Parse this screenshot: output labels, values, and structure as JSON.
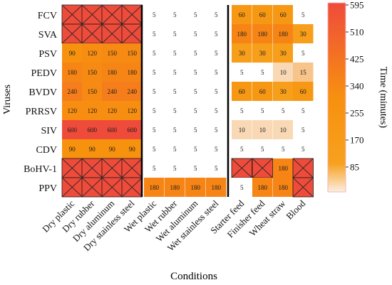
{
  "chart_data": {
    "type": "heatmap",
    "xlabel": "Conditions",
    "ylabel": "Viruses",
    "colorbar_label": "Time (minutes)",
    "columns": [
      "Dry plastic",
      "Dry rubber",
      "Dry aluminum",
      "Dry stainless steel",
      "Wet plastic",
      "Wet rubber",
      "Wet aluminum",
      "Wet stainless steel",
      "Starter feed",
      "Finisher feed",
      "Wheat straw",
      "Blood"
    ],
    "rows": [
      "FCV",
      "SVA",
      "PSV",
      "PEDV",
      "BVDV",
      "PRRSV",
      "SIV",
      "CDV",
      "BoHV-1",
      "PPV"
    ],
    "column_groups": [
      {
        "columns": [
          0,
          1,
          2,
          3
        ]
      },
      {
        "columns": [
          4,
          5,
          6,
          7
        ]
      },
      {
        "columns": [
          8,
          9,
          10,
          11
        ]
      }
    ],
    "values": [
      [
        null,
        null,
        null,
        null,
        5,
        5,
        5,
        5,
        60,
        60,
        60,
        5
      ],
      [
        null,
        null,
        null,
        null,
        5,
        5,
        5,
        5,
        180,
        180,
        180,
        30
      ],
      [
        90,
        120,
        150,
        150,
        5,
        5,
        5,
        5,
        30,
        30,
        30,
        5
      ],
      [
        180,
        150,
        180,
        180,
        5,
        5,
        5,
        5,
        5,
        5,
        10,
        15
      ],
      [
        240,
        150,
        240,
        240,
        5,
        5,
        5,
        5,
        60,
        60,
        30,
        60
      ],
      [
        120,
        120,
        120,
        120,
        5,
        5,
        5,
        5,
        5,
        5,
        5,
        5
      ],
      [
        600,
        600,
        600,
        600,
        5,
        5,
        5,
        5,
        10,
        10,
        10,
        5
      ],
      [
        90,
        90,
        90,
        90,
        5,
        5,
        5,
        5,
        5,
        5,
        5,
        5
      ],
      [
        null,
        null,
        null,
        null,
        5,
        5,
        5,
        5,
        null,
        null,
        180,
        null
      ],
      [
        null,
        null,
        null,
        null,
        180,
        180,
        180,
        180,
        5,
        180,
        180,
        null
      ]
    ],
    "colorbar": {
      "min": 0,
      "max": 595,
      "ticks": [
        85,
        170,
        255,
        340,
        425,
        510,
        595
      ]
    },
    "colors": {
      "low": "#fbeee0",
      "mid": "#f7920e",
      "high": "#ef4b3b",
      "crossed": "#ef4b3b",
      "cross_line": "#3a2a2a"
    }
  }
}
